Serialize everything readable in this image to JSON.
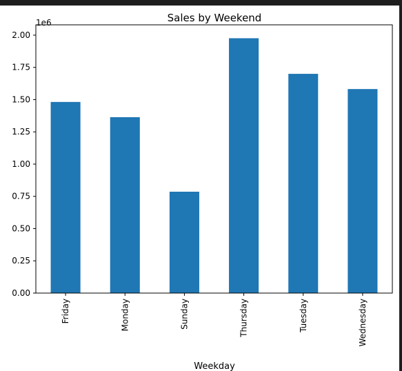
{
  "chart_data": {
    "type": "bar",
    "title": "Sales by Weekend",
    "xlabel": "Weekday",
    "ylabel": "",
    "offset_text": "1e6",
    "categories": [
      "Friday",
      "Monday",
      "Sunday",
      "Thursday",
      "Tuesday",
      "Wednesday"
    ],
    "values": [
      1482000,
      1364000,
      786000,
      1976000,
      1700000,
      1582000
    ],
    "ylim": [
      0,
      2080000
    ],
    "yticks": [
      0,
      250000,
      500000,
      750000,
      1000000,
      1250000,
      1500000,
      1750000,
      2000000
    ],
    "ytick_labels": [
      "0.00",
      "0.25",
      "0.50",
      "0.75",
      "1.00",
      "1.25",
      "1.50",
      "1.75",
      "2.00"
    ],
    "bar_color": "#1f77b4",
    "grid": false,
    "legend": "none"
  }
}
